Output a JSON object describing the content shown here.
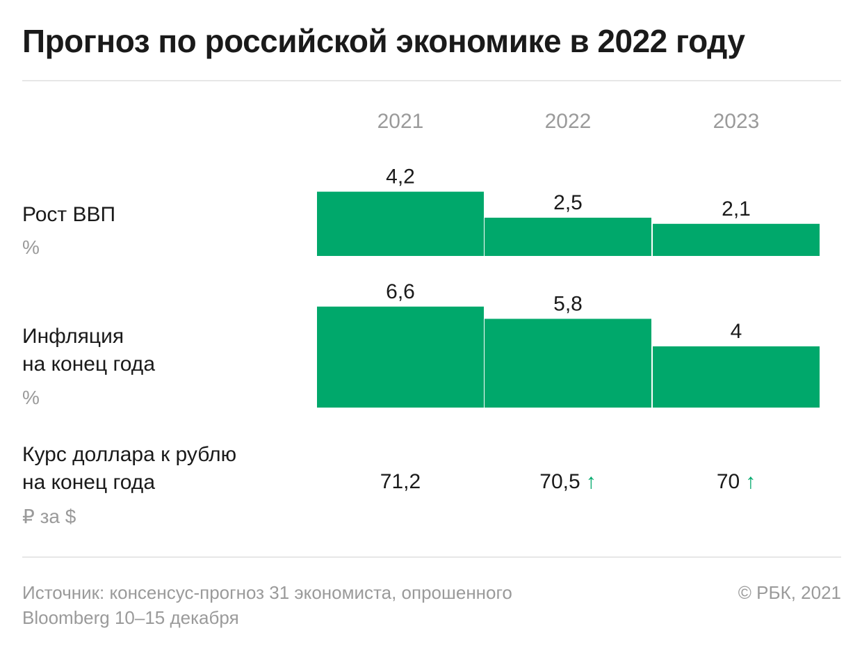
{
  "title": "Прогноз по российской экономике в 2022 году",
  "years": [
    "2021",
    "2022",
    "2023"
  ],
  "accent_color": "#00a86b",
  "rows": {
    "gdp": {
      "label": "Рост ВВП",
      "unit": "%"
    },
    "inflation": {
      "label_line1": "Инфляция",
      "label_line2": "на конец года",
      "unit": "%"
    },
    "rate": {
      "label_line1": "Курс доллара к рублю",
      "label_line2": "на конец года",
      "unit": "₽ за $"
    }
  },
  "chart_data": [
    {
      "type": "bar",
      "title": "Рост ВВП",
      "unit": "%",
      "categories": [
        "2021",
        "2022",
        "2023"
      ],
      "values": [
        4.2,
        2.5,
        2.1
      ],
      "labels": [
        "4,2",
        "2,5",
        "2,1"
      ]
    },
    {
      "type": "bar",
      "title": "Инфляция на конец года",
      "unit": "%",
      "categories": [
        "2021",
        "2022",
        "2023"
      ],
      "values": [
        6.6,
        5.8,
        4.0
      ],
      "labels": [
        "6,6",
        "5,8",
        "4"
      ]
    },
    {
      "type": "table",
      "title": "Курс доллара к рублю на конец года",
      "unit": "₽ за $",
      "categories": [
        "2021",
        "2022",
        "2023"
      ],
      "values": [
        71.2,
        70.5,
        70
      ],
      "labels": [
        "71,2",
        "70,5",
        "70"
      ],
      "arrow_icon": "arrow-up-icon",
      "trend_arrow": [
        false,
        true,
        true
      ]
    }
  ],
  "source": {
    "line1": "Источник:  консенсус-прогноз 31 экономиста, опрошенного",
    "line2": "Bloomberg 10–15 декабря"
  },
  "copyright": "© РБК, 2021"
}
